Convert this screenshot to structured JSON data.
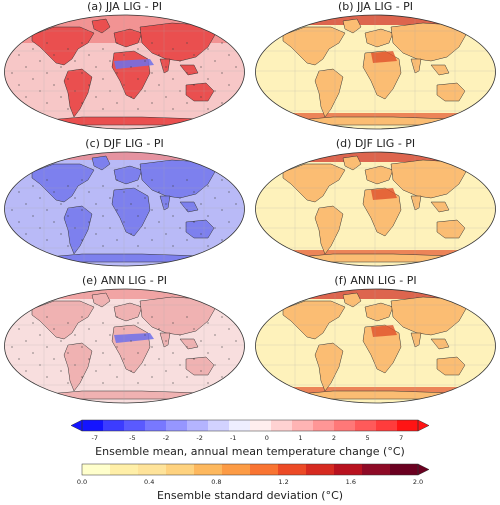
{
  "panels": [
    {
      "title": "(a) JJA LIG - PI",
      "kind": "mean",
      "season": "jja"
    },
    {
      "title": "(b) JJA LIG - PI",
      "kind": "std",
      "season": "jja"
    },
    {
      "title": "(c) DJF LIG - PI",
      "kind": "mean",
      "season": "djf"
    },
    {
      "title": "(d) DJF LIG - PI",
      "kind": "std",
      "season": "djf"
    },
    {
      "title": "(e) ANN LIG - PI",
      "kind": "mean",
      "season": "ann"
    },
    {
      "title": "(f) ANN LIG - PI",
      "kind": "std",
      "season": "ann"
    }
  ],
  "colorbar_mean": {
    "label": "Ensemble mean, annual mean temperature change (°C)",
    "ticks": [
      "-7",
      "-5",
      "-2",
      "-2",
      "-1",
      "0",
      "1",
      "2",
      "5",
      "7"
    ],
    "colors": [
      "#1414ff",
      "#3c3cff",
      "#5a5aff",
      "#7878ff",
      "#9696ff",
      "#b4b4ff",
      "#d2d2ff",
      "#eeeeff",
      "#ffeeee",
      "#ffd2d2",
      "#ffb4b4",
      "#ff9696",
      "#ff7878",
      "#ff5a5a",
      "#ff3c3c",
      "#ff1414"
    ]
  },
  "colorbar_std": {
    "label": "Ensemble standard deviation (°C)",
    "ticks": [
      "0.0",
      "0.4",
      "0.8",
      "1.2",
      "1.6",
      "2.0"
    ],
    "colors": [
      "#ffffcc",
      "#ffefa8",
      "#fee39a",
      "#fed27f",
      "#fdb85e",
      "#fc9b45",
      "#f97432",
      "#ec4a26",
      "#d62a20",
      "#b8121f",
      "#8e0a26",
      "#6a0020"
    ]
  },
  "map_colors": {
    "ocean_mean_jja": "#f7c7c7",
    "land_mean_jja": "#ea4f4f",
    "ocean_mean_djf": "#b9baf7",
    "land_mean_djf": "#7d80ee",
    "ocean_mean_ann": "#f8dede",
    "land_mean_ann": "#f0b2b2",
    "ocean_std": "#fef2bb",
    "land_std": "#fbbd73"
  }
}
